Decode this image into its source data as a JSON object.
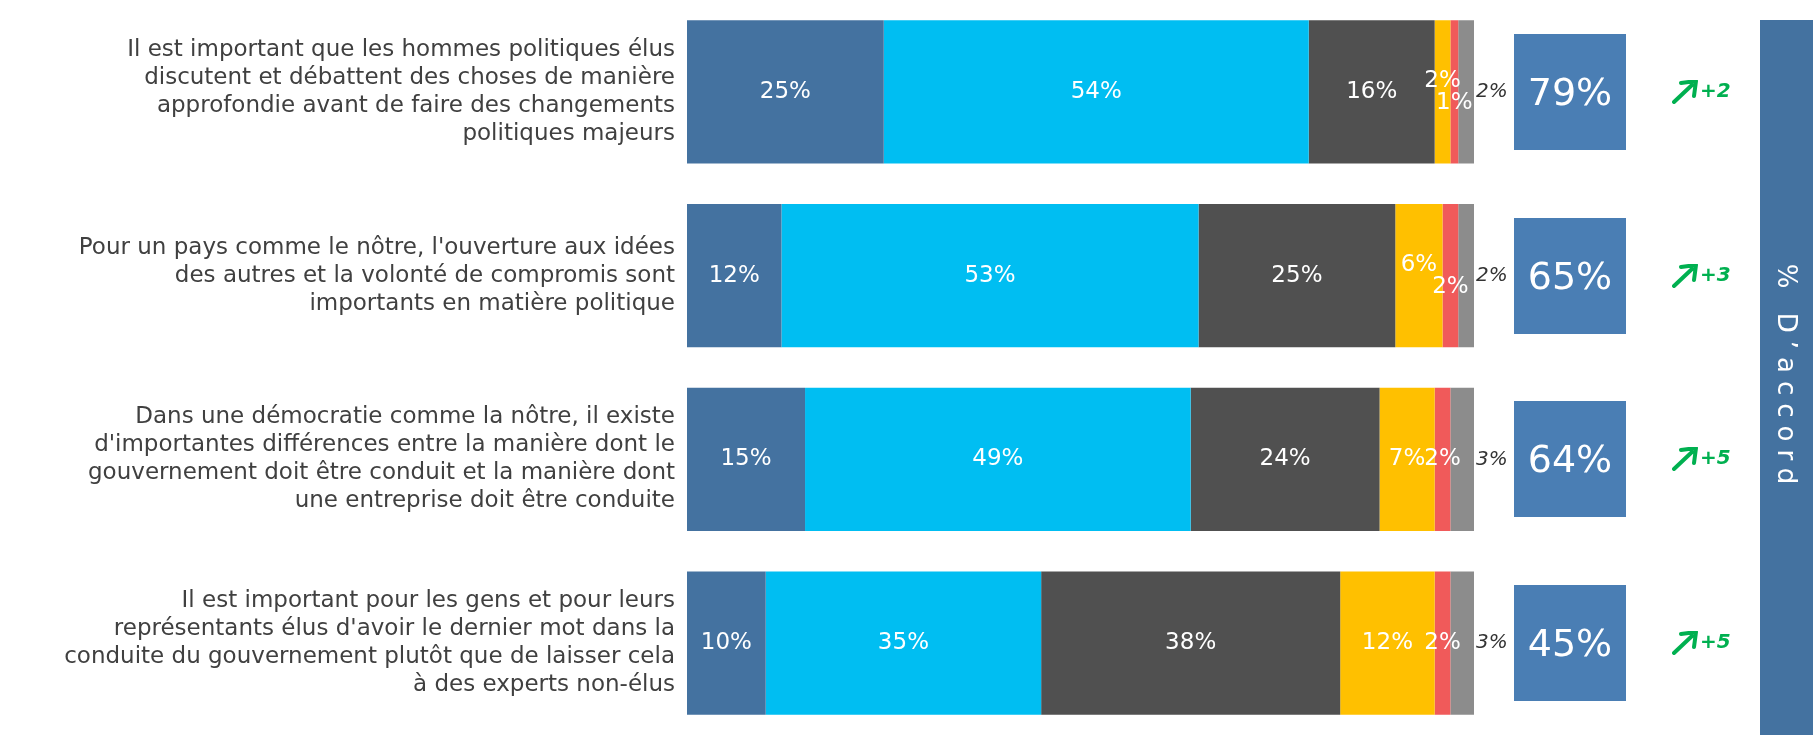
{
  "chart_data": {
    "type": "bar",
    "orientation": "horizontal",
    "stacked": true,
    "legend": false,
    "grid": false,
    "categories": [
      "Il est important que les hommes politiques élus discutent et débattent des choses de manière approfondie avant de faire des changements politiques majeurs",
      "Pour un pays comme le nôtre, l'ouverture aux idées des autres et la volonté de compromis sont importants en matière politique",
      "Dans une démocratie comme la nôtre, il existe d'importantes différences entre la manière dont le gouvernement doit être conduit et la manière dont une entreprise doit être conduite",
      "Il est important pour les gens et pour leurs représentants élus d'avoir le dernier mot dans la conduite du gouvernement plutôt que de laisser cela à des experts non-élus"
    ],
    "series": [
      {
        "color": "#4472a0",
        "values": [
          25,
          12,
          15,
          10
        ],
        "value_labels": [
          "25%",
          "12%",
          "15%",
          "10%"
        ]
      },
      {
        "color": "#00bef2",
        "values": [
          54,
          53,
          49,
          35
        ],
        "value_labels": [
          "54%",
          "53%",
          "49%",
          "35%"
        ]
      },
      {
        "color": "#505050",
        "values": [
          16,
          25,
          24,
          38
        ],
        "value_labels": [
          "16%",
          "25%",
          "24%",
          "38%"
        ]
      },
      {
        "color": "#ffc000",
        "values": [
          2,
          6,
          7,
          12
        ],
        "value_labels": [
          "2%",
          "6%",
          "7%",
          "12%"
        ]
      },
      {
        "color": "#f05a5a",
        "values": [
          1,
          2,
          2,
          2
        ],
        "value_labels": [
          "1%",
          "2%",
          "2%",
          "2%"
        ]
      },
      {
        "color": "#8c8c8c",
        "values": [
          2,
          2,
          3,
          3
        ],
        "value_labels": [
          "2%",
          "2%",
          "3%",
          "3%"
        ]
      }
    ],
    "annotations": [
      "79%",
      "65%",
      "64%",
      "45%",
      "+2",
      "+3",
      "+5",
      "+5",
      "% D’accord"
    ]
  }
}
